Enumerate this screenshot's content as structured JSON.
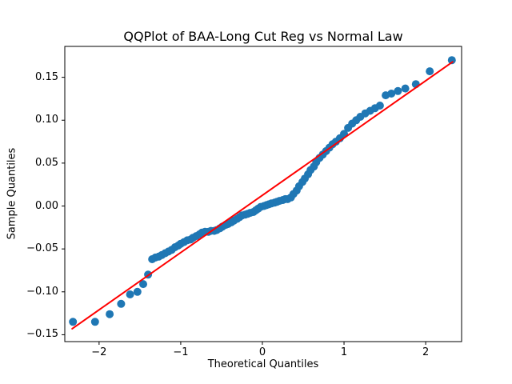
{
  "figure": {
    "background": "#ffffff",
    "plot_border_color": "#000000"
  },
  "chart_data": {
    "type": "scatter",
    "title": "QQPlot of BAA-Long Cut Reg vs Normal Law",
    "xlabel": "Theoretical Quantiles",
    "ylabel": "Sample Quantiles",
    "xlim": [
      -2.42,
      2.44
    ],
    "ylim": [
      -0.158,
      0.186
    ],
    "grid": false,
    "legend_position": "none",
    "xticks": {
      "values": [
        -2,
        -1,
        0,
        1,
        2
      ],
      "labels": [
        "−2",
        "−1",
        "0",
        "1",
        "2"
      ]
    },
    "yticks": {
      "values": [
        0.15,
        0.1,
        0.05,
        0.0,
        -0.05,
        -0.1,
        -0.15
      ],
      "labels": [
        "0.15",
        "0.10",
        "0.05",
        "0.00",
        "−0.05",
        "−0.10",
        "−0.15"
      ]
    },
    "series": [
      {
        "name": "sample-quantiles-scatter",
        "kind": "scatter",
        "color": "#1f77b4",
        "marker_radius": 5,
        "points": [
          [
            -2.32,
            -0.135
          ],
          [
            -2.05,
            -0.135
          ],
          [
            -1.87,
            -0.126
          ],
          [
            -1.73,
            -0.114
          ],
          [
            -1.62,
            -0.103
          ],
          [
            -1.53,
            -0.1
          ],
          [
            -1.46,
            -0.091
          ],
          [
            -1.4,
            -0.08
          ],
          [
            -1.35,
            -0.062
          ],
          [
            -1.31,
            -0.06
          ],
          [
            -1.27,
            -0.059
          ],
          [
            -1.23,
            -0.057
          ],
          [
            -1.19,
            -0.055
          ],
          [
            -1.15,
            -0.053
          ],
          [
            -1.11,
            -0.051
          ],
          [
            -1.07,
            -0.048
          ],
          [
            -1.03,
            -0.046
          ],
          [
            -1.0,
            -0.044
          ],
          [
            -0.96,
            -0.042
          ],
          [
            -0.92,
            -0.04
          ],
          [
            -0.88,
            -0.039
          ],
          [
            -0.85,
            -0.037
          ],
          [
            -0.81,
            -0.035
          ],
          [
            -0.77,
            -0.033
          ],
          [
            -0.74,
            -0.031
          ],
          [
            -0.7,
            -0.03
          ],
          [
            -0.66,
            -0.03
          ],
          [
            -0.63,
            -0.029
          ],
          [
            -0.59,
            -0.029
          ],
          [
            -0.56,
            -0.028
          ],
          [
            -0.52,
            -0.026
          ],
          [
            -0.49,
            -0.024
          ],
          [
            -0.45,
            -0.022
          ],
          [
            -0.42,
            -0.021
          ],
          [
            -0.38,
            -0.019
          ],
          [
            -0.35,
            -0.017
          ],
          [
            -0.31,
            -0.015
          ],
          [
            -0.28,
            -0.013
          ],
          [
            -0.25,
            -0.011
          ],
          [
            -0.21,
            -0.01
          ],
          [
            -0.18,
            -0.009
          ],
          [
            -0.15,
            -0.008
          ],
          [
            -0.11,
            -0.007
          ],
          [
            -0.08,
            -0.005
          ],
          [
            -0.05,
            -0.003
          ],
          [
            -0.02,
            -0.001
          ],
          [
            0.02,
            0.0
          ],
          [
            0.05,
            0.001
          ],
          [
            0.08,
            0.002
          ],
          [
            0.11,
            0.003
          ],
          [
            0.15,
            0.004
          ],
          [
            0.18,
            0.005
          ],
          [
            0.21,
            0.006
          ],
          [
            0.25,
            0.007
          ],
          [
            0.28,
            0.008
          ],
          [
            0.31,
            0.008
          ],
          [
            0.35,
            0.01
          ],
          [
            0.38,
            0.014
          ],
          [
            0.42,
            0.018
          ],
          [
            0.45,
            0.023
          ],
          [
            0.49,
            0.028
          ],
          [
            0.52,
            0.032
          ],
          [
            0.56,
            0.037
          ],
          [
            0.59,
            0.042
          ],
          [
            0.63,
            0.046
          ],
          [
            0.66,
            0.051
          ],
          [
            0.7,
            0.056
          ],
          [
            0.74,
            0.06
          ],
          [
            0.78,
            0.064
          ],
          [
            0.82,
            0.068
          ],
          [
            0.86,
            0.072
          ],
          [
            0.9,
            0.075
          ],
          [
            0.95,
            0.079
          ],
          [
            1.0,
            0.084
          ],
          [
            1.05,
            0.091
          ],
          [
            1.1,
            0.096
          ],
          [
            1.15,
            0.1
          ],
          [
            1.2,
            0.104
          ],
          [
            1.26,
            0.108
          ],
          [
            1.32,
            0.111
          ],
          [
            1.38,
            0.114
          ],
          [
            1.44,
            0.117
          ],
          [
            1.51,
            0.129
          ],
          [
            1.58,
            0.131
          ],
          [
            1.66,
            0.134
          ],
          [
            1.75,
            0.137
          ],
          [
            1.88,
            0.142
          ],
          [
            2.05,
            0.157
          ],
          [
            2.32,
            0.17
          ]
        ]
      },
      {
        "name": "normal-fit-line",
        "kind": "line",
        "color": "#ff0000",
        "width": 2,
        "points": [
          [
            -2.33,
            -0.143
          ],
          [
            2.33,
            0.168
          ]
        ]
      }
    ]
  }
}
